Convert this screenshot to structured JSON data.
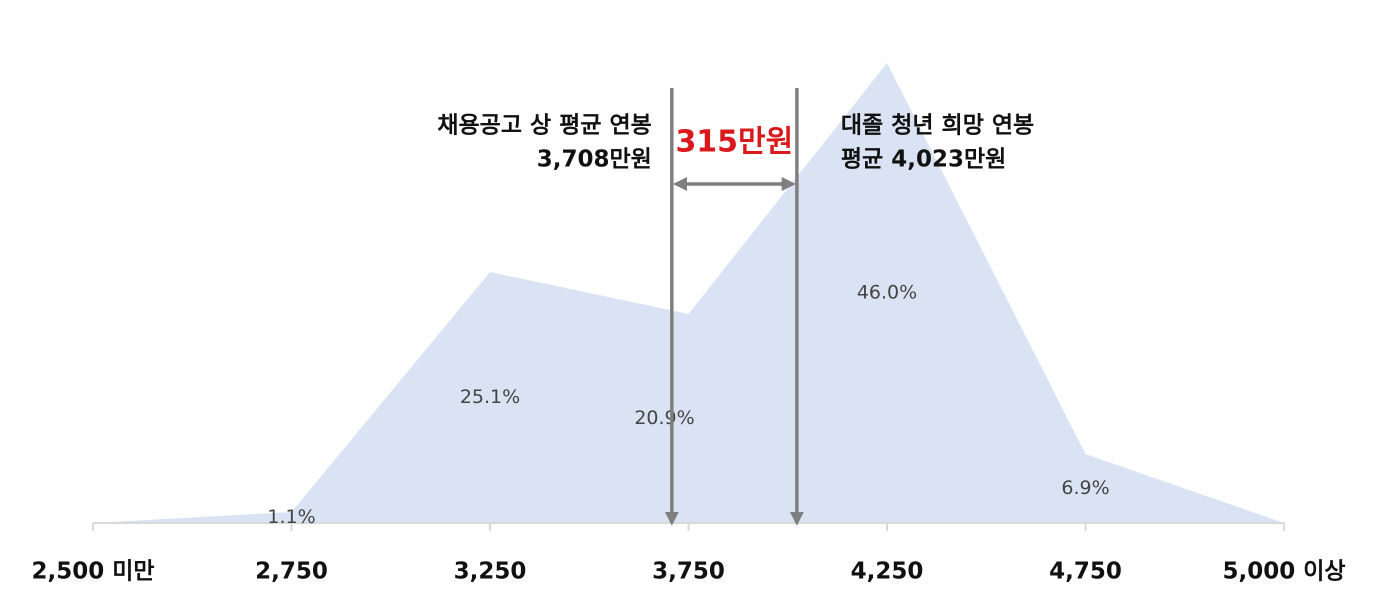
{
  "chart_data": {
    "type": "area",
    "categories": [
      "2,500 미만",
      "2,750",
      "3,250",
      "3,750",
      "4,250",
      "4,750",
      "5,000 이상"
    ],
    "values": [
      0,
      1.1,
      25.1,
      20.9,
      46.0,
      6.9,
      0
    ],
    "value_labels": [
      null,
      "1.1%",
      "25.1%",
      "20.9%",
      "46.0%",
      "6.9%",
      null
    ],
    "color": "#dae3f3",
    "ylim": [
      0,
      50
    ],
    "annotations": [
      {
        "x": 3708,
        "lines": [
          "채용공고 상 평균 연봉",
          "3,708만원"
        ]
      },
      {
        "x": 4023,
        "lines": [
          "대졸 청년 희망 연봉",
          "평균 4,023만원"
        ]
      }
    ],
    "gap_label": "315만원"
  }
}
